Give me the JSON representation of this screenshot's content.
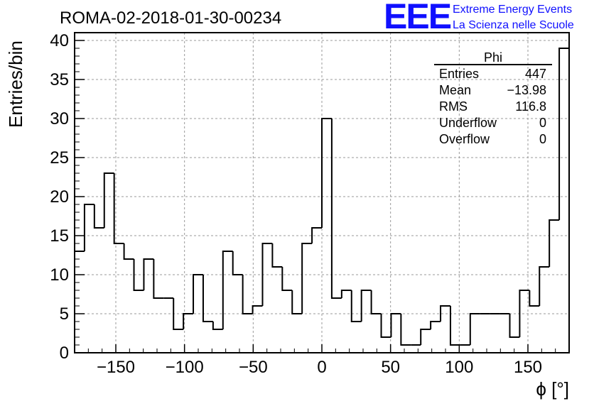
{
  "header": {
    "title": "ROMA-02-2018-01-30-00234",
    "logo_text": "EEE",
    "brand_line1": "Extreme Energy Events",
    "brand_line2": "La Scienza nelle Scuole",
    "brand_color": "#1010ff"
  },
  "stats": {
    "name": "Phi",
    "rows": [
      {
        "label": "Entries",
        "value": "447"
      },
      {
        "label": "Mean",
        "value": "−13.98"
      },
      {
        "label": "RMS",
        "value": "116.8"
      },
      {
        "label": "Underflow",
        "value": "0"
      },
      {
        "label": "Overflow",
        "value": "0"
      }
    ]
  },
  "chart_data": {
    "type": "histogram",
    "title": "ROMA-02-2018-01-30-00234",
    "xlabel": "ϕ [°]",
    "ylabel": "Entries/bin",
    "xlim": [
      -180,
      180
    ],
    "ylim": [
      0,
      41
    ],
    "bin_width": 7.2,
    "grid": true,
    "x_ticks": [
      -150,
      -100,
      -50,
      0,
      50,
      100,
      150
    ],
    "x_tick_labels": [
      "−150",
      "−100",
      "−50",
      "0",
      "50",
      "100",
      "150"
    ],
    "y_ticks": [
      0,
      5,
      10,
      15,
      20,
      25,
      30,
      35,
      40
    ],
    "y_tick_labels": [
      "0",
      "5",
      "10",
      "15",
      "20",
      "25",
      "30",
      "35",
      "40"
    ],
    "values": [
      13,
      19,
      16,
      23,
      14,
      12,
      8,
      12,
      7,
      7,
      3,
      5,
      10,
      4,
      3,
      13,
      10,
      5,
      6,
      14,
      11,
      8,
      5,
      14,
      16,
      30,
      7,
      8,
      4,
      8,
      5,
      2,
      5,
      1,
      1,
      3,
      4,
      6,
      1,
      1,
      5,
      5,
      5,
      5,
      2,
      8,
      6,
      11,
      17,
      39
    ]
  }
}
